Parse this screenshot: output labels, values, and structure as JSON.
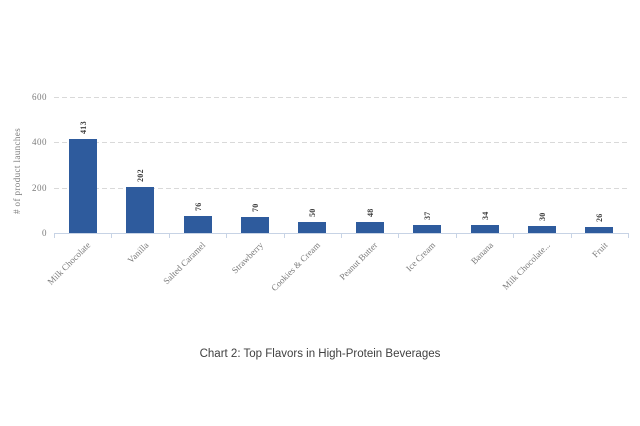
{
  "caption": "Chart 2: Top Flavors in High-Protein Beverages",
  "chart_data": {
    "type": "bar",
    "title": "",
    "categories": [
      "Milk Chocolate",
      "Vanilla",
      "Salted Caramel",
      "Strawberry",
      "Cookies & Cream",
      "Peanut Butter",
      "Ice Cream",
      "Banana",
      "Milk Chocolate...",
      "Fruit"
    ],
    "values": [
      413,
      202,
      76,
      70,
      50,
      48,
      37,
      34,
      30,
      26
    ],
    "xlabel": "",
    "ylabel": "# of product launches",
    "yticks": [
      0,
      200,
      400,
      600
    ],
    "ylim": [
      0,
      600
    ],
    "grid": "horizontal dashed, legend none",
    "legend": "none",
    "bar_color": "#2e5b9d",
    "grid_color": "#d9d9d9",
    "axis_color": "#c7d3e5",
    "tick_label_color": "#7b7b7b",
    "value_label_color": "#3d3d3d"
  }
}
